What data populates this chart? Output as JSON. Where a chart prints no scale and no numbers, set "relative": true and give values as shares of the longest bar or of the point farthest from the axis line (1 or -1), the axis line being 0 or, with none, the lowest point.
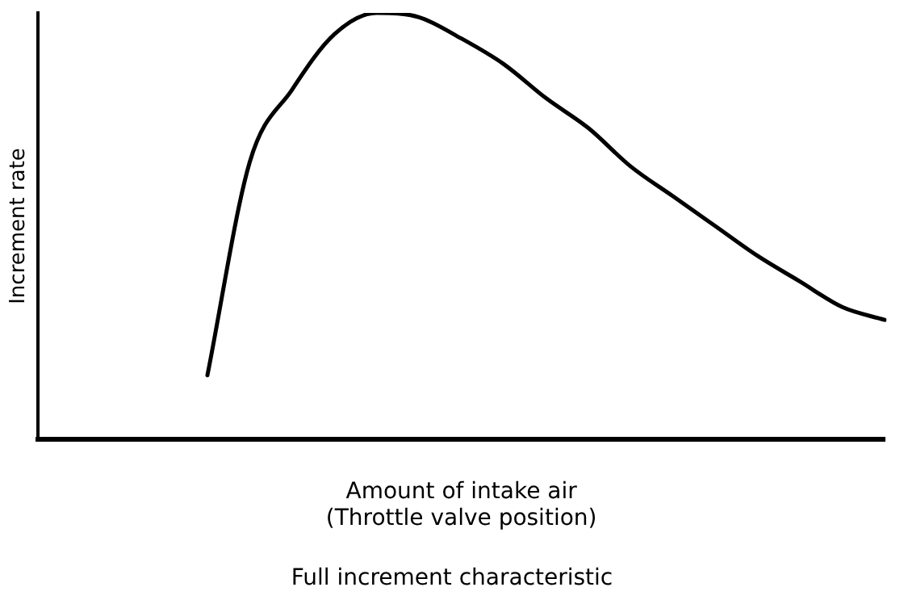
{
  "chart_data": {
    "type": "line",
    "relative": true,
    "ylabel": "Increment rate",
    "xlabel": "Amount of intake air\n(Throttle valve position)",
    "annotations": [
      "Full increment characteristic"
    ],
    "categories": [
      null,
      null,
      null,
      null,
      null,
      null,
      null,
      null,
      null,
      null,
      null,
      null,
      null,
      null,
      null,
      null,
      null,
      null,
      null,
      null,
      null
    ],
    "series": [
      {
        "color": "#000000",
        "values": [
          null,
          null,
          null,
          null,
          0.15,
          0.65,
          0.82,
          0.95,
          1,
          0.99,
          0.94,
          0.88,
          0.8,
          0.73,
          0.64,
          0.57,
          0.5,
          0.43,
          0.37,
          0.31,
          0.28
        ]
      }
    ],
    "grid": false,
    "legend": false,
    "marker": "none",
    "line_style": "solid"
  }
}
